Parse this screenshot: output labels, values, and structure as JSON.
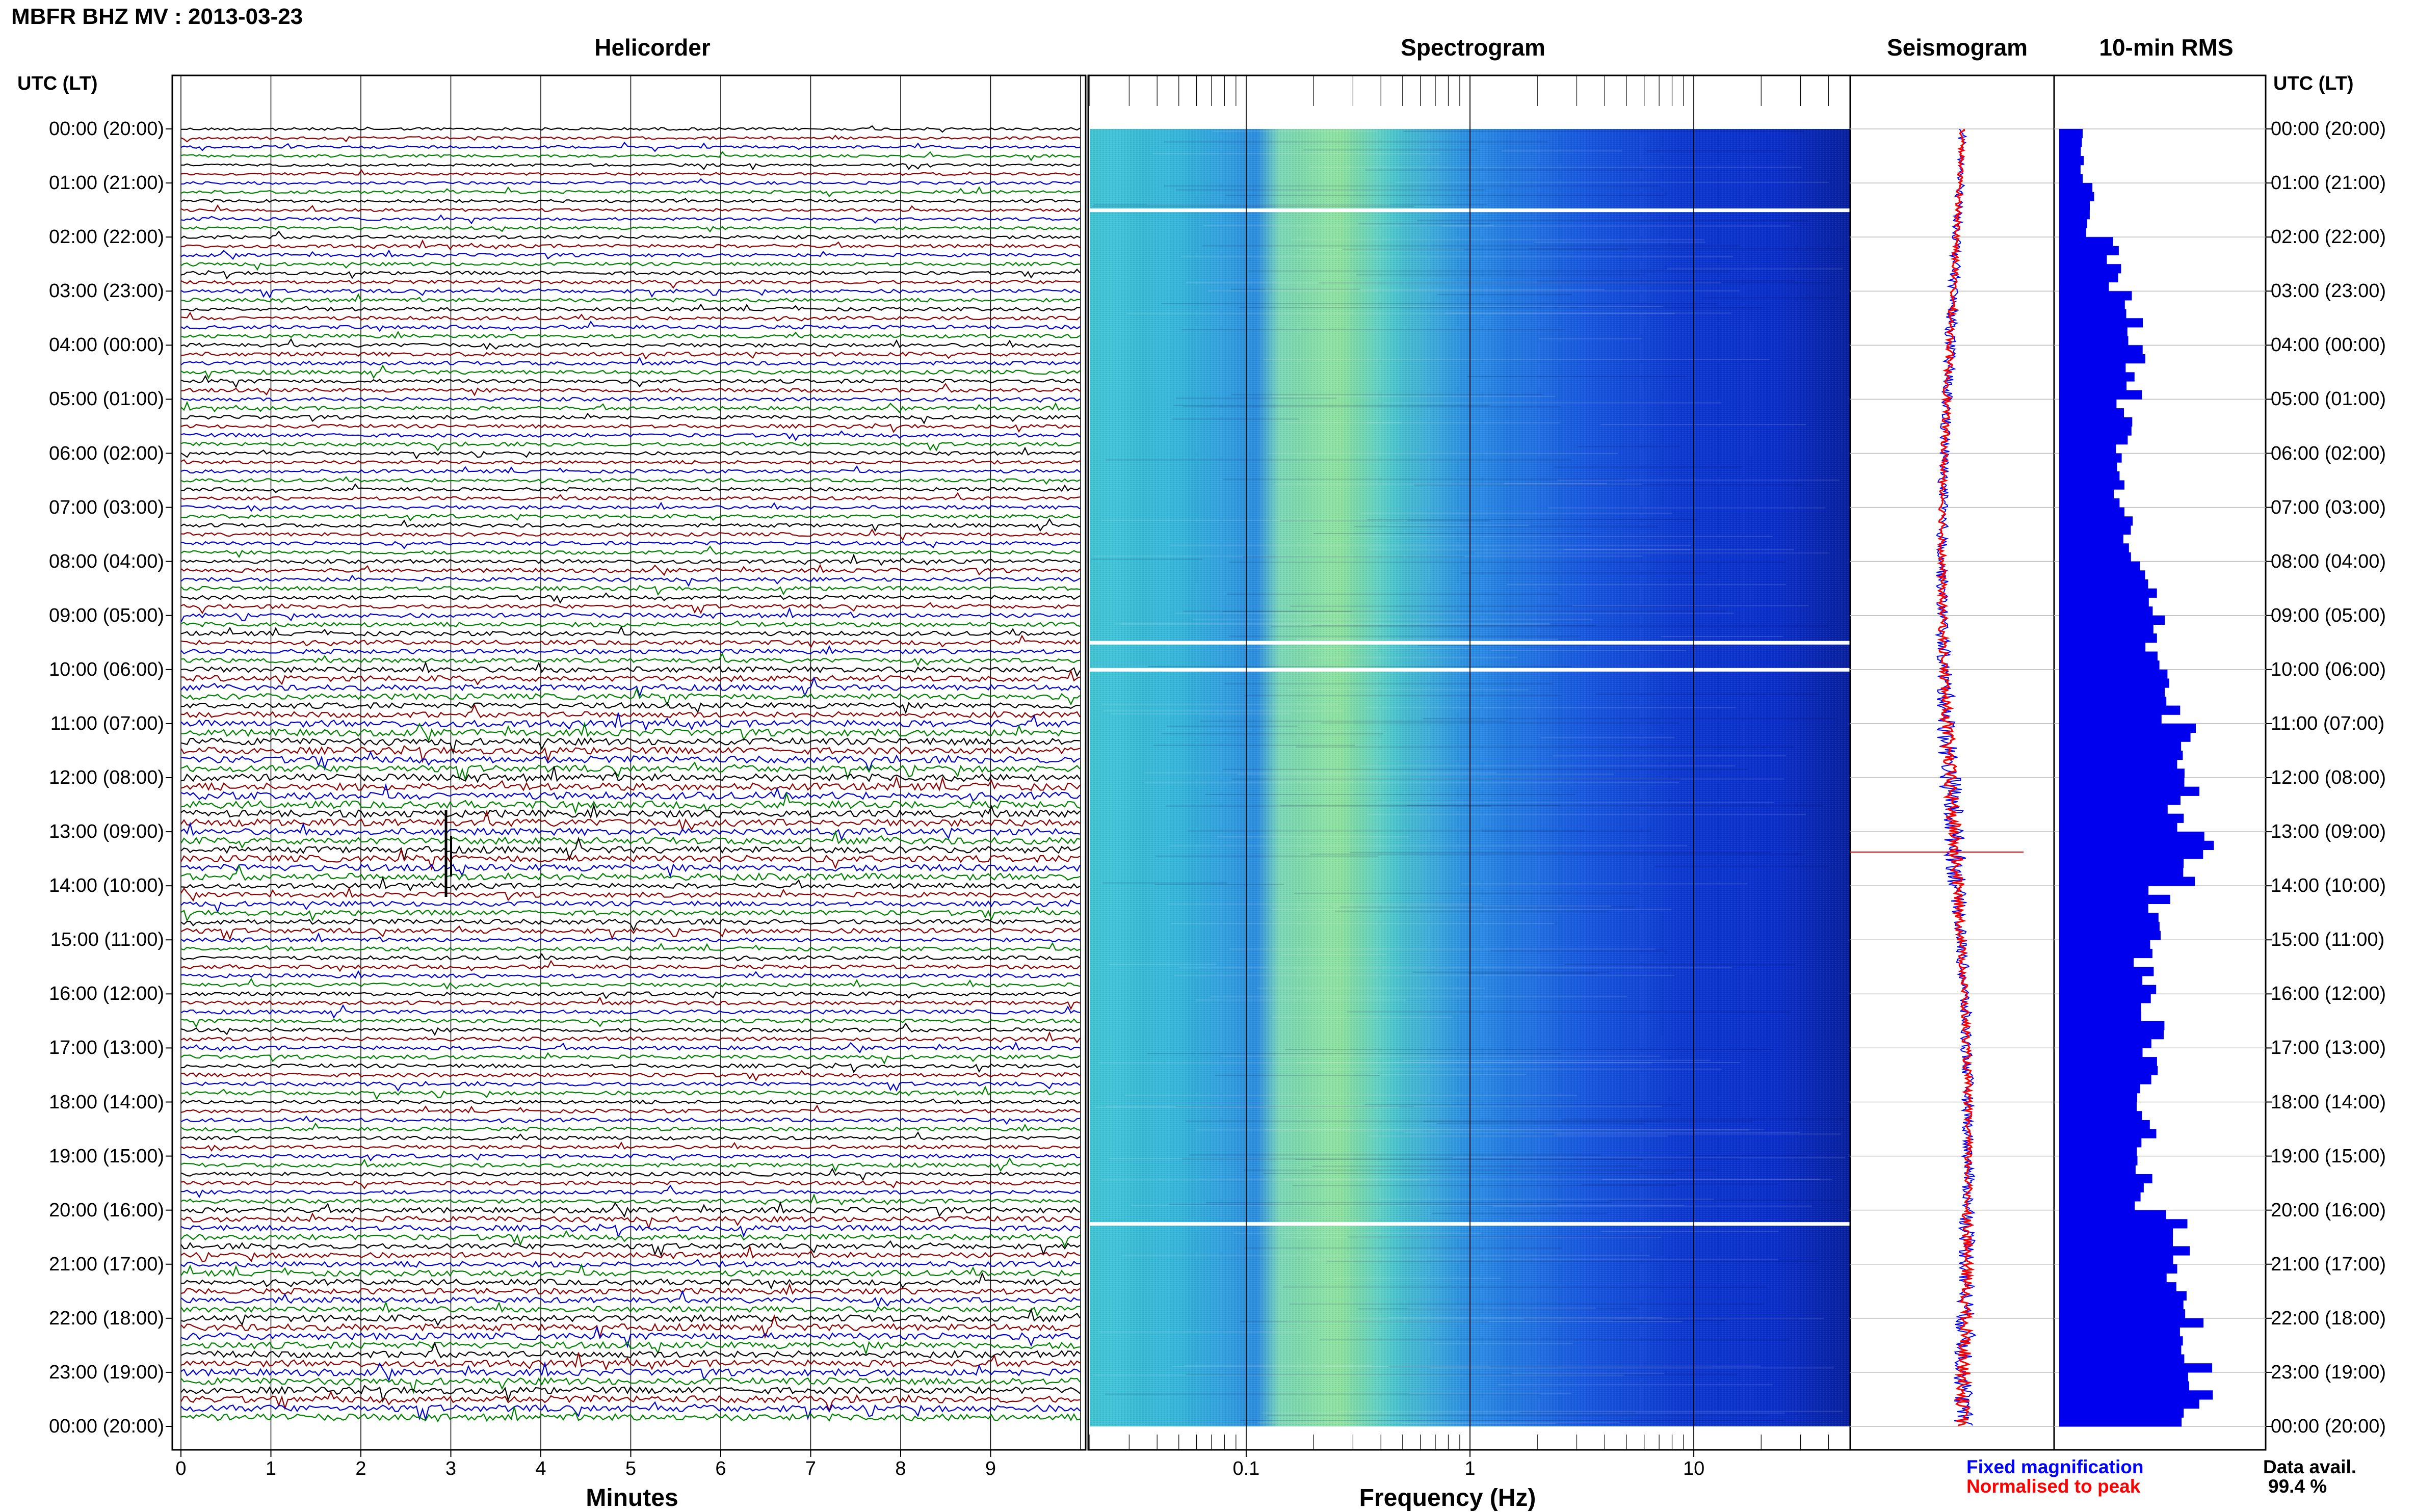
{
  "header": {
    "title": "MBFR BHZ MV : 2013-03-23"
  },
  "panels": {
    "helicorder": "Helicorder",
    "spectrogram": "Spectrogram",
    "seismogram": "Seismogram",
    "rms": "10-min RMS"
  },
  "axes": {
    "utc_label": "UTC (LT)",
    "minutes_label": "Minutes",
    "frequency_label": "Frequency (Hz)",
    "minute_ticks": [
      "0",
      "1",
      "2",
      "3",
      "4",
      "5",
      "6",
      "7",
      "8",
      "9"
    ],
    "freq_ticks": [
      "0.1",
      "1",
      "10"
    ],
    "time_ticks": [
      "00:00 (20:00)",
      "01:00 (21:00)",
      "02:00 (22:00)",
      "03:00 (23:00)",
      "04:00 (00:00)",
      "05:00 (01:00)",
      "06:00 (02:00)",
      "07:00 (03:00)",
      "08:00 (04:00)",
      "09:00 (05:00)",
      "10:00 (06:00)",
      "11:00 (07:00)",
      "12:00 (08:00)",
      "13:00 (09:00)",
      "14:00 (10:00)",
      "15:00 (11:00)",
      "16:00 (12:00)",
      "17:00 (13:00)",
      "18:00 (14:00)",
      "19:00 (15:00)",
      "20:00 (16:00)",
      "21:00 (17:00)",
      "22:00 (18:00)",
      "23:00 (19:00)",
      "00:00 (20:00)"
    ]
  },
  "legend": {
    "fixed": "Fixed magnification",
    "normalised": "Normalised to peak",
    "avail_label": "Data avail.",
    "avail_value": "99.4 %"
  },
  "colors": {
    "trace_cycle": [
      "#000000",
      "#8b0000",
      "#0000cc",
      "#008000"
    ],
    "rms_bar": "#0000ee",
    "seis_fixed": "#0000ff",
    "seis_norm": "#ff0000"
  },
  "chart_data": [
    {
      "type": "line",
      "title": "Helicorder",
      "xlabel": "Minutes",
      "xlim": [
        0,
        10
      ],
      "rows_per_hour": 6,
      "hours": 24,
      "amplitude_by_hour": [
        1.0,
        1.1,
        1.3,
        1.4,
        1.5,
        1.4,
        1.3,
        1.4,
        1.5,
        1.7,
        2.2,
        2.6,
        2.8,
        2.6,
        1.9,
        1.5,
        1.5,
        1.5,
        1.4,
        1.5,
        2.1,
        2.2,
        2.6,
        2.6
      ]
    },
    {
      "type": "heatmap",
      "title": "Spectrogram",
      "xlabel": "Frequency (Hz)",
      "xscale": "log",
      "xlim": [
        0.02,
        50
      ],
      "gaps_utc_hours": [
        1.5,
        9.5,
        10.0,
        20.25
      ]
    },
    {
      "type": "line",
      "title": "Seismogram",
      "series": [
        {
          "name": "Fixed magnification"
        },
        {
          "name": "Normalised to peak"
        }
      ]
    },
    {
      "type": "bar",
      "title": "10-min RMS",
      "orientation": "horizontal",
      "bin_minutes": 10,
      "rms_relative_hourly": [
        0.12,
        0.16,
        0.28,
        0.38,
        0.4,
        0.34,
        0.3,
        0.36,
        0.45,
        0.52,
        0.58,
        0.62,
        0.64,
        0.7,
        0.52,
        0.44,
        0.48,
        0.46,
        0.45,
        0.42,
        0.6,
        0.62,
        0.72,
        0.7
      ]
    }
  ]
}
